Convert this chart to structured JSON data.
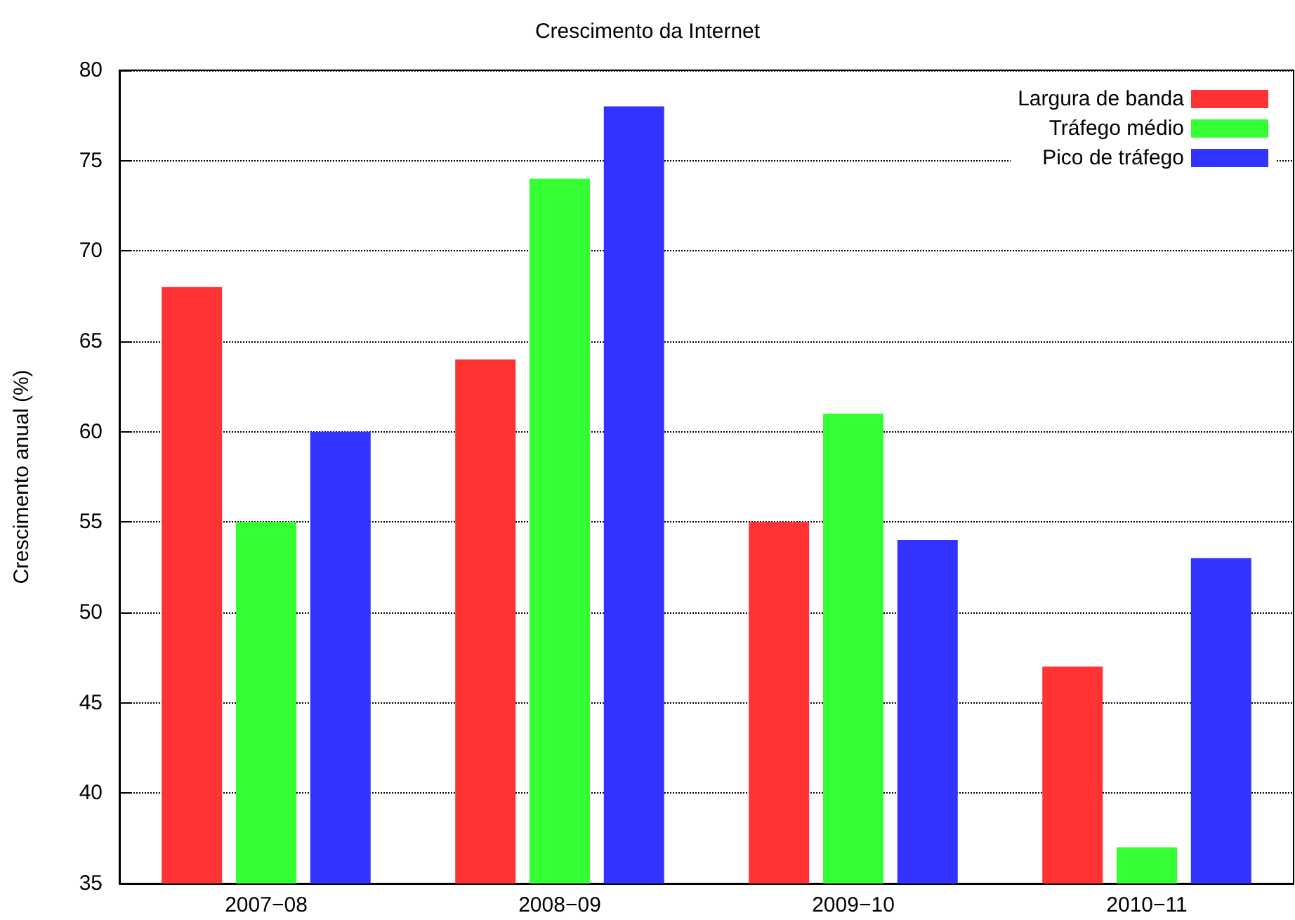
{
  "chart_data": {
    "type": "bar",
    "title": "Crescimento da Internet",
    "ylabel": "Crescimento anual (%)",
    "categories": [
      "2007−08",
      "2008−09",
      "2009−10",
      "2010−11"
    ],
    "series": [
      {
        "name": "Largura de banda",
        "color": "#ff3333",
        "values": [
          68,
          64,
          55,
          47
        ]
      },
      {
        "name": "Tráfego médio",
        "color": "#33ff33",
        "values": [
          55,
          74,
          61,
          37
        ]
      },
      {
        "name": "Pico de tráfego",
        "color": "#3333ff",
        "values": [
          60,
          78,
          54,
          53
        ]
      }
    ],
    "ylim": [
      35,
      80
    ],
    "yticks": [
      35,
      40,
      45,
      50,
      55,
      60,
      65,
      70,
      75,
      80
    ],
    "grid": "y",
    "legend": "top right"
  }
}
